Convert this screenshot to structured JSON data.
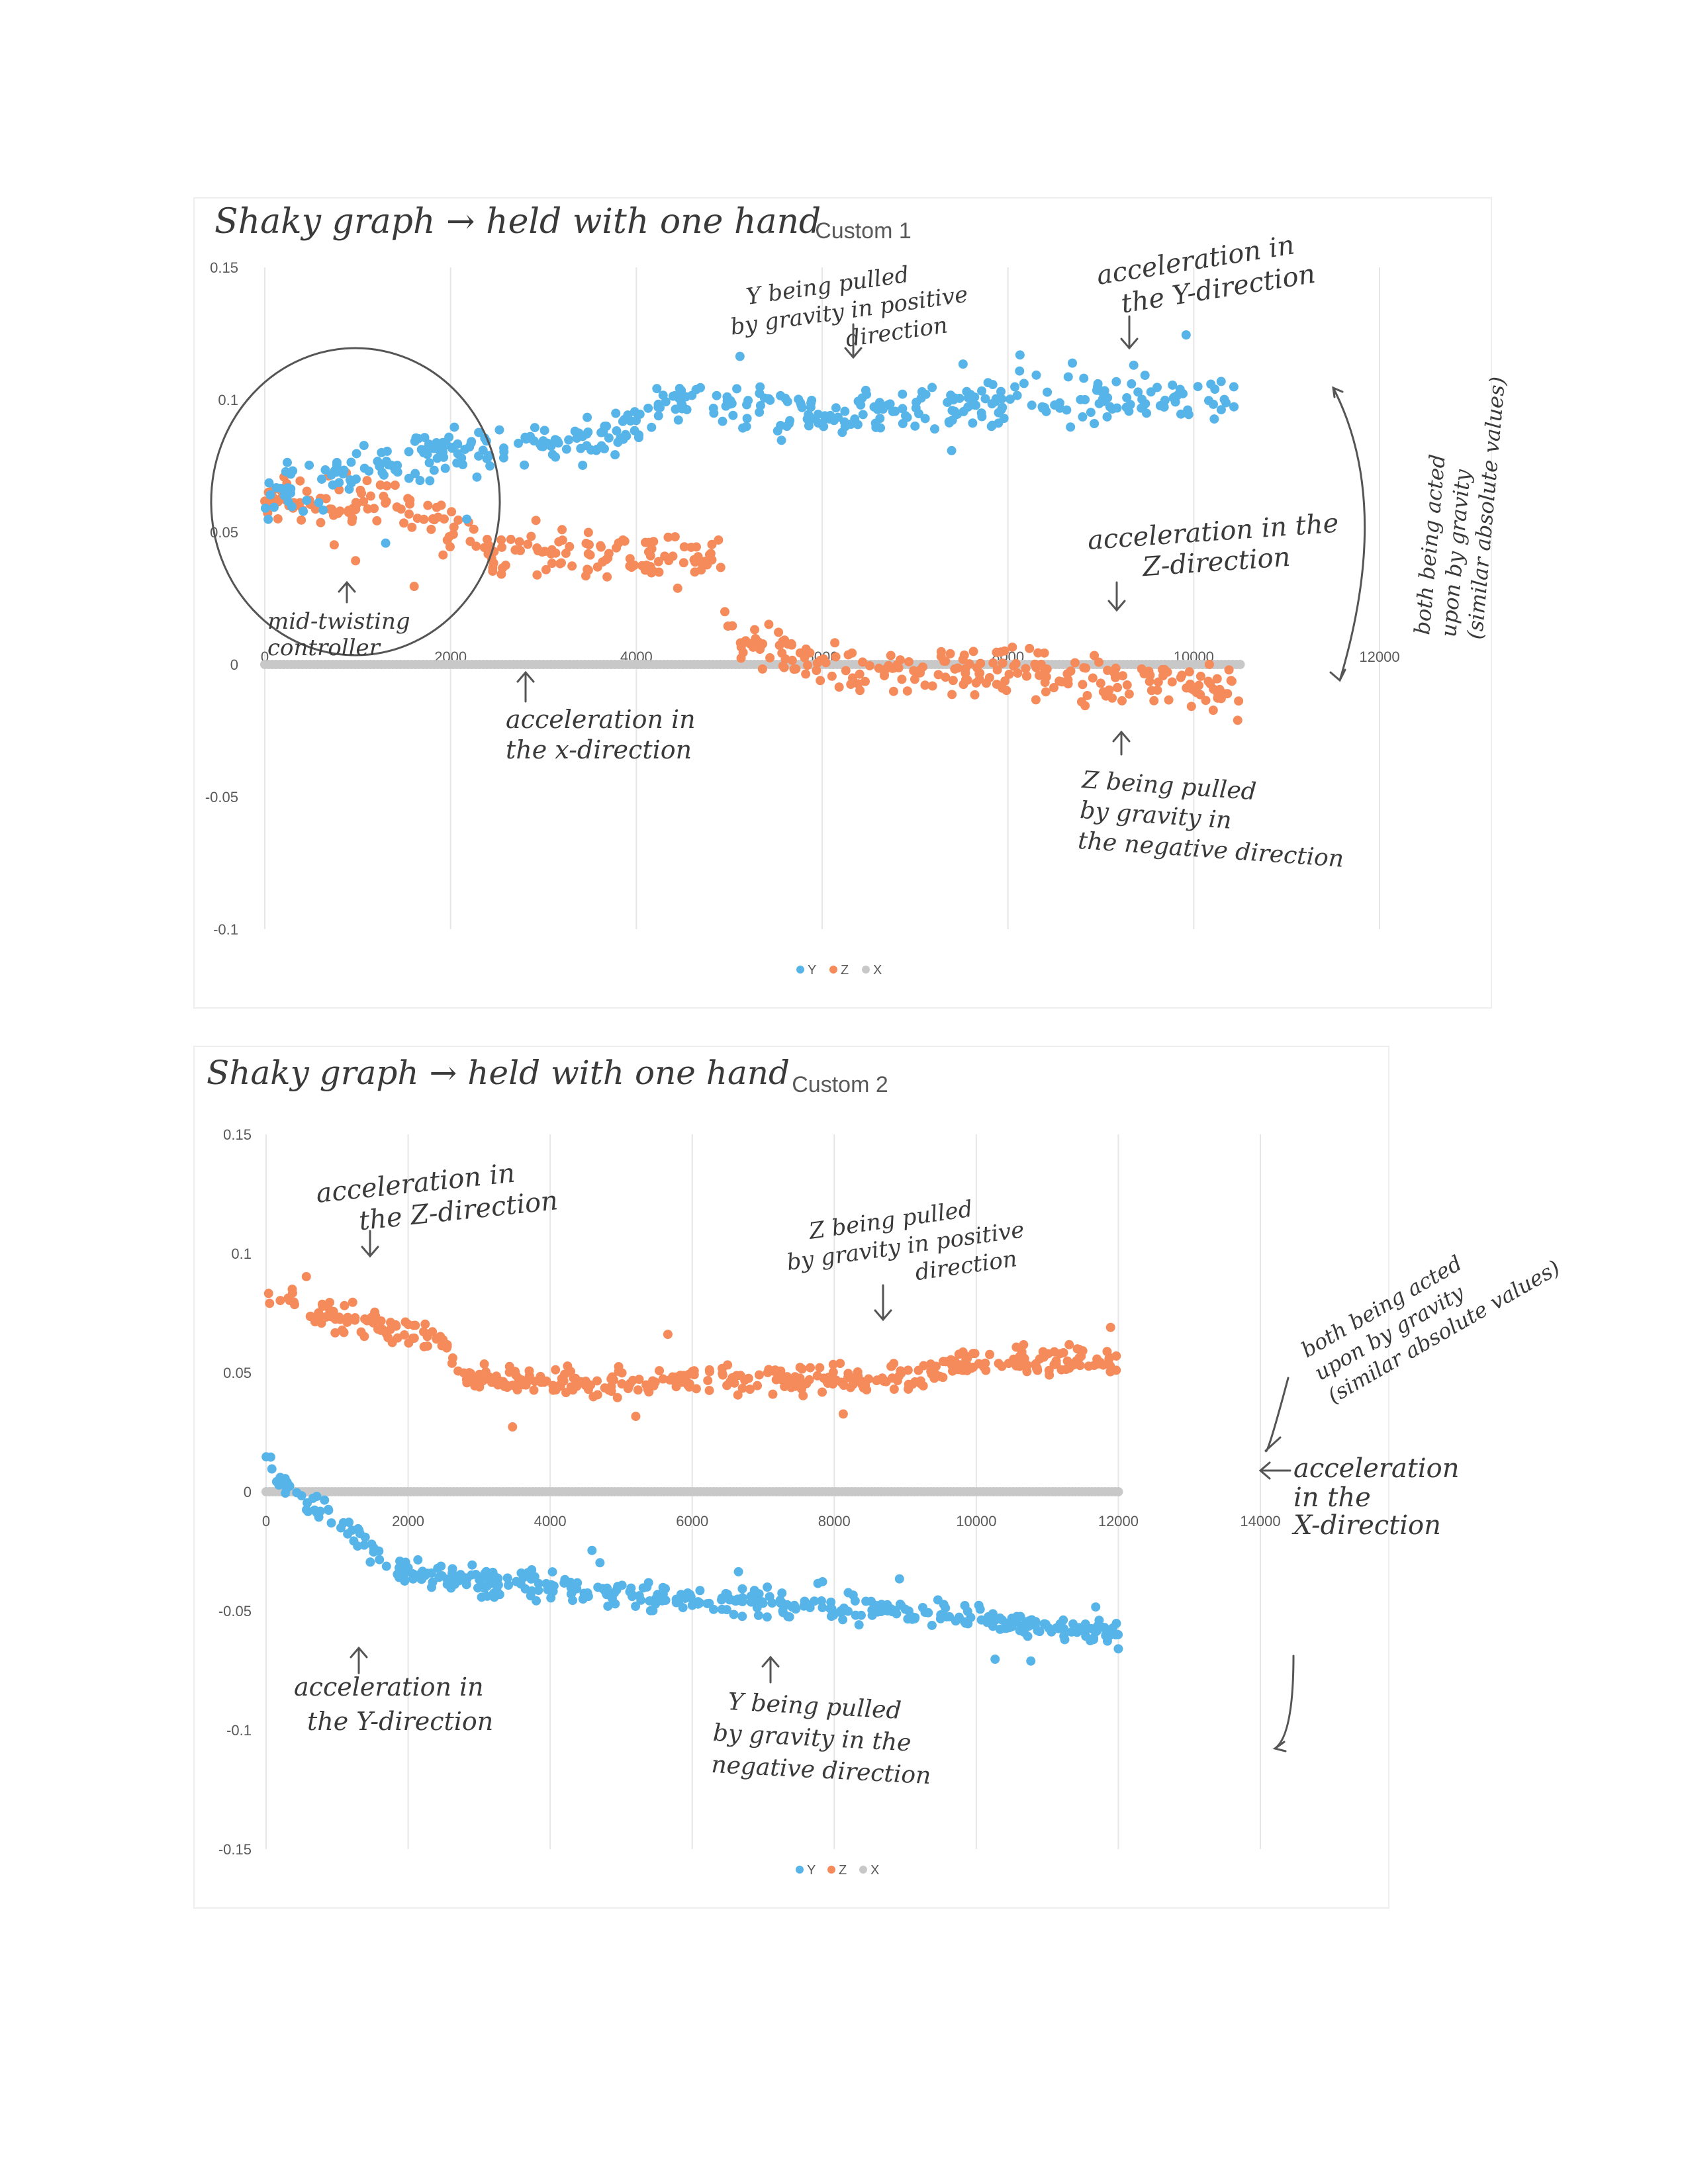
{
  "chart_data": [
    {
      "type": "scatter",
      "title": "Custom 1",
      "handwritten_title": "Shaky graph → held with one hand",
      "xlim": [
        0,
        12000
      ],
      "ylim": [
        -0.1,
        0.15
      ],
      "x_ticks": [
        0,
        2000,
        4000,
        6000,
        8000,
        10000,
        12000
      ],
      "y_ticks": [
        -0.1,
        -0.05,
        0,
        0.05,
        0.1,
        0.15
      ],
      "x_tick_labels": [
        "0",
        "2000",
        "4000",
        "6000",
        "8000",
        "10000",
        "12000"
      ],
      "y_tick_labels": [
        "-0.1",
        "-0.05",
        "0",
        "0.05",
        "0.1",
        "0.15"
      ],
      "legend": [
        "Y",
        "Z",
        "X"
      ],
      "legend_position": "bottom",
      "grid": "vertical",
      "colors": {
        "Y": "#56b4e9",
        "Z": "#f58a5b",
        "X": "#c8c8c8"
      },
      "x_range": [
        0,
        10500
      ],
      "series": [
        {
          "name": "Y",
          "trend": [
            [
              0,
              0.062
            ],
            [
              1500,
              0.078
            ],
            [
              3500,
              0.085
            ],
            [
              4500,
              0.1
            ],
            [
              6000,
              0.095
            ],
            [
              8000,
              0.098
            ],
            [
              10500,
              0.103
            ]
          ]
        },
        {
          "name": "Z",
          "trend": [
            [
              0,
              0.062
            ],
            [
              1500,
              0.062
            ],
            [
              2500,
              0.043
            ],
            [
              4800,
              0.04
            ],
            [
              5100,
              0.01
            ],
            [
              6500,
              -0.003
            ],
            [
              8000,
              -0.002
            ],
            [
              10500,
              -0.01
            ]
          ]
        },
        {
          "name": "X",
          "trend": [
            [
              0,
              0
            ],
            [
              10500,
              0
            ]
          ]
        }
      ],
      "annotations": [
        "Y being pulled by gravity in positive direction",
        "acceleration in the Y-direction",
        "both being acted upon by gravity (similar absolute values)",
        "acceleration in the Z-direction",
        "mid-twisting controller",
        "acceleration in the x-direction",
        "Z being pulled by gravity in the negative direction"
      ]
    },
    {
      "type": "scatter",
      "title": "Custom 2",
      "handwritten_title": "Shaky graph → held with one hand",
      "xlim": [
        0,
        14000
      ],
      "ylim": [
        -0.15,
        0.15
      ],
      "x_ticks": [
        0,
        2000,
        4000,
        6000,
        8000,
        10000,
        12000,
        14000
      ],
      "y_ticks": [
        -0.15,
        -0.1,
        -0.05,
        0,
        0.05,
        0.1,
        0.15
      ],
      "x_tick_labels": [
        "0",
        "2000",
        "4000",
        "6000",
        "8000",
        "10000",
        "12000",
        "14000"
      ],
      "y_tick_labels": [
        "-0.15",
        "-0.1",
        "-0.05",
        "0",
        "0.05",
        "0.1",
        "0.15"
      ],
      "legend": [
        "Y",
        "Z",
        "X"
      ],
      "legend_position": "bottom",
      "grid": "vertical",
      "colors": {
        "Y": "#56b4e9",
        "Z": "#f58a5b",
        "X": "#c8c8c8"
      },
      "x_range": [
        0,
        12000
      ],
      "series": [
        {
          "name": "Y",
          "trend": [
            [
              0,
              0.012
            ],
            [
              800,
              -0.01
            ],
            [
              2000,
              -0.035
            ],
            [
              4000,
              -0.04
            ],
            [
              6000,
              -0.045
            ],
            [
              9000,
              -0.05
            ],
            [
              12000,
              -0.06
            ]
          ]
        },
        {
          "name": "Z",
          "trend": [
            [
              0,
              0.085
            ],
            [
              1000,
              0.072
            ],
            [
              2500,
              0.065
            ],
            [
              2700,
              0.047
            ],
            [
              6000,
              0.047
            ],
            [
              9000,
              0.048
            ],
            [
              10000,
              0.055
            ],
            [
              12000,
              0.055
            ]
          ]
        },
        {
          "name": "X",
          "trend": [
            [
              0,
              0
            ],
            [
              12000,
              0
            ]
          ]
        }
      ],
      "annotations": [
        "acceleration in the Z-direction",
        "Z being pulled by gravity in positive direction",
        "both being acted upon by gravity (similar absolute values)",
        "acceleration in the X-direction",
        "acceleration in the Y-direction",
        "Y being pulled by gravity in the negative direction"
      ]
    }
  ]
}
